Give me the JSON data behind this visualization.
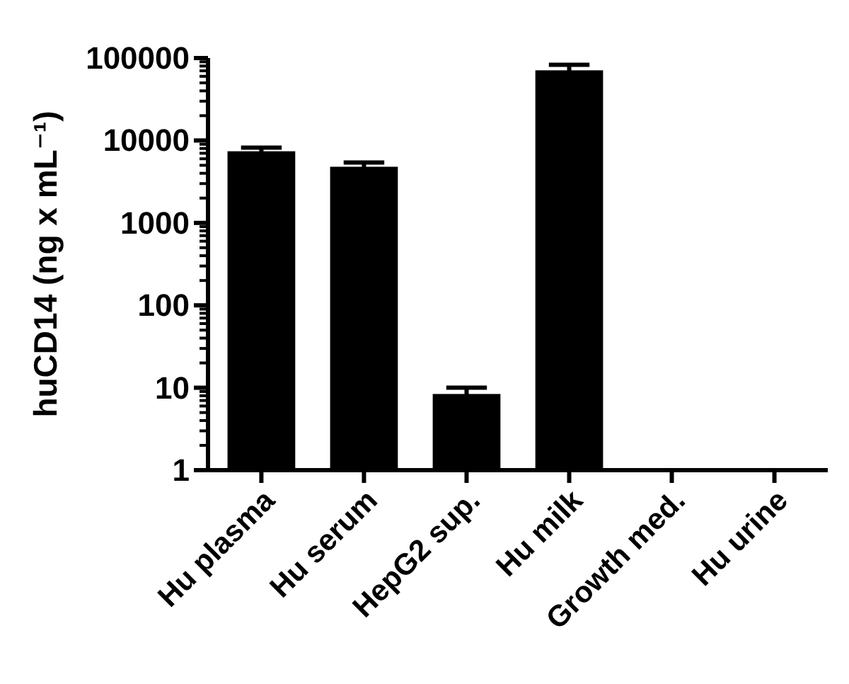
{
  "chart_data": {
    "type": "bar",
    "ylabel": "huCD14 (ng x mL⁻¹)",
    "categories": [
      "Hu plasma",
      "Hu serum",
      "HepG2 sup.",
      "Hu milk",
      "Growth med.",
      "Hu urine"
    ],
    "values": [
      7400,
      4800,
      8.4,
      71000,
      null,
      null
    ],
    "errors": [
      800,
      600,
      1.6,
      12000,
      null,
      null
    ],
    "color": "#000000",
    "log": true,
    "ylim": [
      1,
      100000
    ],
    "yticks": [
      1,
      {
        "value": 2,
        "label": null
      },
      {
        "value": 3,
        "label": null
      },
      {
        "value": 4,
        "label": null
      },
      {
        "value": 5,
        "label": null
      },
      {
        "value": 6,
        "label": null
      },
      {
        "value": 7,
        "label": null
      },
      {
        "value": 8,
        "label": null
      },
      {
        "value": 9,
        "label": null
      },
      10,
      {
        "value": 20,
        "label": null
      },
      {
        "value": 30,
        "label": null
      },
      {
        "value": 40,
        "label": null
      },
      {
        "value": 50,
        "label": null
      },
      {
        "value": 60,
        "label": null
      },
      {
        "value": 70,
        "label": null
      },
      {
        "value": 80,
        "label": null
      },
      {
        "value": 90,
        "label": null
      },
      100,
      {
        "value": 200,
        "label": null
      },
      {
        "value": 300,
        "label": null
      },
      {
        "value": 400,
        "label": null
      },
      {
        "value": 500,
        "label": null
      },
      {
        "value": 600,
        "label": null
      },
      {
        "value": 700,
        "label": null
      },
      {
        "value": 800,
        "label": null
      },
      {
        "value": 900,
        "label": null
      },
      1000,
      {
        "value": 2000,
        "label": null
      },
      {
        "value": 3000,
        "label": null
      },
      {
        "value": 4000,
        "label": null
      },
      {
        "value": 5000,
        "label": null
      },
      {
        "value": 6000,
        "label": null
      },
      {
        "value": 7000,
        "label": null
      },
      {
        "value": 8000,
        "label": null
      },
      {
        "value": 9000,
        "label": null
      },
      10000,
      {
        "value": 20000,
        "label": null
      },
      {
        "value": 30000,
        "label": null
      },
      {
        "value": 40000,
        "label": null
      },
      {
        "value": 50000,
        "label": null
      },
      {
        "value": 60000,
        "label": null
      },
      {
        "value": 70000,
        "label": null
      },
      {
        "value": 80000,
        "label": null
      },
      {
        "value": 90000,
        "label": null
      },
      100000
    ]
  }
}
